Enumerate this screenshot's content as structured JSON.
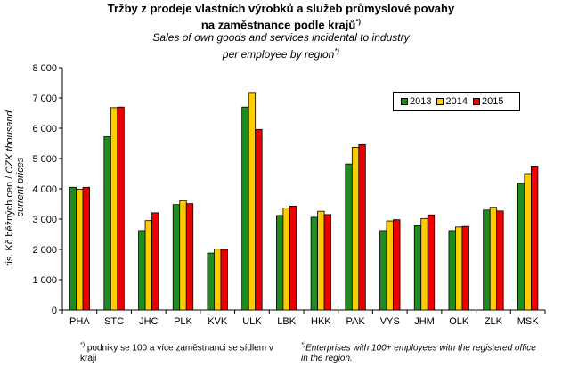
{
  "title": {
    "cz": "Tržby z prodeje vlastních výrobků a služeb průmyslové povahy",
    "cz_line2": "na zaměstnance podle krajů",
    "cz_sup": "*)",
    "en": "Sales of own goods and services incidental to industry",
    "en_line2": "per employee by region",
    "en_sup": "*)"
  },
  "yaxis": {
    "label_cz": "tis. Kč běžných cen / ",
    "label_en_1": "CZK thousand,",
    "label_en_2": "current prices"
  },
  "footnotes": {
    "cz_marker": "*)",
    "cz": " podniky se 100 a více zaměstnanci se sídlem v kraji",
    "en_marker": "*)",
    "en": "Enterprises with 100+ employees with the registered office in the region."
  },
  "chart_data": {
    "type": "bar",
    "title": "Tržby z prodeje vlastních výrobků a služeb průmyslové povahy na zaměstnance podle krajů",
    "subtitle": "Sales of own goods and services incidental to industry per employee by region",
    "ylabel": "tis. Kč běžných cen / CZK thousand, current prices",
    "xlabel": "",
    "ylim": [
      0,
      8000
    ],
    "yticks": [
      0,
      1000,
      2000,
      3000,
      4000,
      5000,
      6000,
      7000,
      8000
    ],
    "ytick_labels": [
      "0",
      "1 000",
      "2 000",
      "3 000",
      "4 000",
      "5 000",
      "6 000",
      "7 000",
      "8 000"
    ],
    "grid": false,
    "legend_position": "top-right",
    "categories": [
      "PHA",
      "STC",
      "JHC",
      "PLK",
      "KVK",
      "ULK",
      "LBK",
      "HKK",
      "PAK",
      "VYS",
      "JHM",
      "OLK",
      "ZLK",
      "MSK"
    ],
    "series": [
      {
        "name": "2013",
        "color": "#1e8c1e",
        "values": [
          4050,
          5720,
          2620,
          3480,
          1880,
          6700,
          3120,
          3060,
          4820,
          2620,
          2780,
          2620,
          3300,
          4180
        ]
      },
      {
        "name": "2014",
        "color": "#ffcc00",
        "values": [
          3990,
          6680,
          2950,
          3610,
          2010,
          7180,
          3370,
          3260,
          5370,
          2940,
          3020,
          2740,
          3390,
          4500
        ]
      },
      {
        "name": "2015",
        "color": "#ee0000",
        "values": [
          4050,
          6700,
          3210,
          3510,
          2000,
          5960,
          3430,
          3150,
          5460,
          2980,
          3140,
          2760,
          3270,
          4750
        ]
      }
    ]
  }
}
